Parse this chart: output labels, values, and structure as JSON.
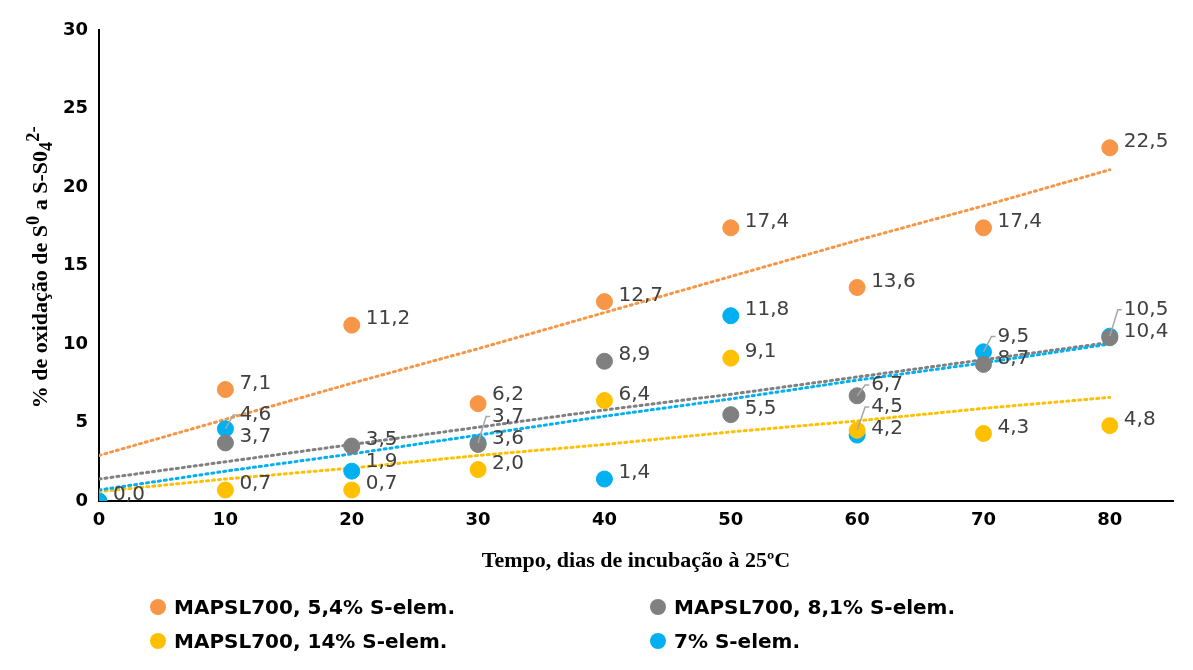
{
  "chart_data": {
    "type": "scatter",
    "xlabel": "Tempo, dias de incubação à 25ºC",
    "ylabel": "% de oxidação de S$^{0}$ a S-S0$_{4}$$^{2-}$",
    "x": [
      0,
      10,
      20,
      30,
      40,
      50,
      60,
      70,
      80
    ],
    "xlim": [
      0,
      85
    ],
    "xticks": [
      0,
      10,
      20,
      30,
      40,
      50,
      60,
      70,
      80
    ],
    "ylim": [
      0,
      30
    ],
    "yticks": [
      0,
      5,
      10,
      15,
      20,
      25,
      30
    ],
    "grid": false,
    "legend": "bottom",
    "marker": "circle",
    "series": [
      {
        "name": "MAPSL700, 5,4% S-elem.",
        "color": "#f79646",
        "values": [
          null,
          7.1,
          11.2,
          6.2,
          12.7,
          17.4,
          13.6,
          17.4,
          22.5
        ],
        "value_labels": [
          null,
          "7,1",
          "11,2",
          "6,2",
          "12,7",
          "17,4",
          "13,6",
          "17,4",
          "22,5"
        ]
      },
      {
        "name": "MAPSL700, 8,1%  S-elem.",
        "color": "#808080",
        "values": [
          null,
          3.7,
          3.5,
          3.6,
          8.9,
          5.5,
          6.7,
          8.7,
          10.4
        ],
        "value_labels": [
          null,
          "3,7",
          "3,5",
          "3,6",
          "8,9",
          "5,5",
          "6,7",
          "8,7",
          "10,4"
        ]
      },
      {
        "name": "MAPSL700, 14%  S-elem.",
        "color": "#ffc000",
        "values": [
          null,
          0.7,
          0.7,
          2.0,
          6.4,
          9.1,
          4.5,
          4.3,
          4.8
        ],
        "value_labels": [
          null,
          "0,7",
          "0,7",
          "2,0",
          "6,4",
          "9,1",
          "4,5",
          "4,3",
          "4,8"
        ]
      },
      {
        "name": "7% S-elem.",
        "color": "#00b0f0",
        "values": [
          0,
          4.6,
          1.9,
          3.7,
          1.4,
          11.8,
          4.2,
          9.5,
          10.5
        ],
        "value_labels": [
          "0,0",
          "4,6",
          "1,9",
          "3,7",
          "1,4",
          "11,8",
          "4,2",
          "9,5",
          "10,5"
        ]
      },
      {
        "type": "line",
        "values": [
          2.9,
          5.2,
          7.5,
          9.7,
          12.0,
          14.3,
          16.6,
          18.8,
          21.1
        ],
        "color": "#f79646",
        "line_style": "dotted",
        "marker": "none"
      },
      {
        "type": "line",
        "values": [
          1.4,
          2.5,
          3.6,
          4.7,
          5.8,
          6.8,
          7.9,
          9.0,
          10.1
        ],
        "color": "#808080",
        "line_style": "dotted",
        "marker": "none"
      },
      {
        "type": "line",
        "values": [
          0.6,
          1.4,
          2.1,
          2.9,
          3.6,
          4.4,
          5.1,
          5.9,
          6.6
        ],
        "color": "#ffc000",
        "line_style": "dotted",
        "marker": "none"
      },
      {
        "type": "line",
        "values": [
          0.7,
          1.9,
          3.0,
          4.2,
          5.4,
          6.5,
          7.7,
          8.8,
          10.0
        ],
        "color": "#00b0f0",
        "line_style": "dotted",
        "marker": "none"
      }
    ]
  }
}
